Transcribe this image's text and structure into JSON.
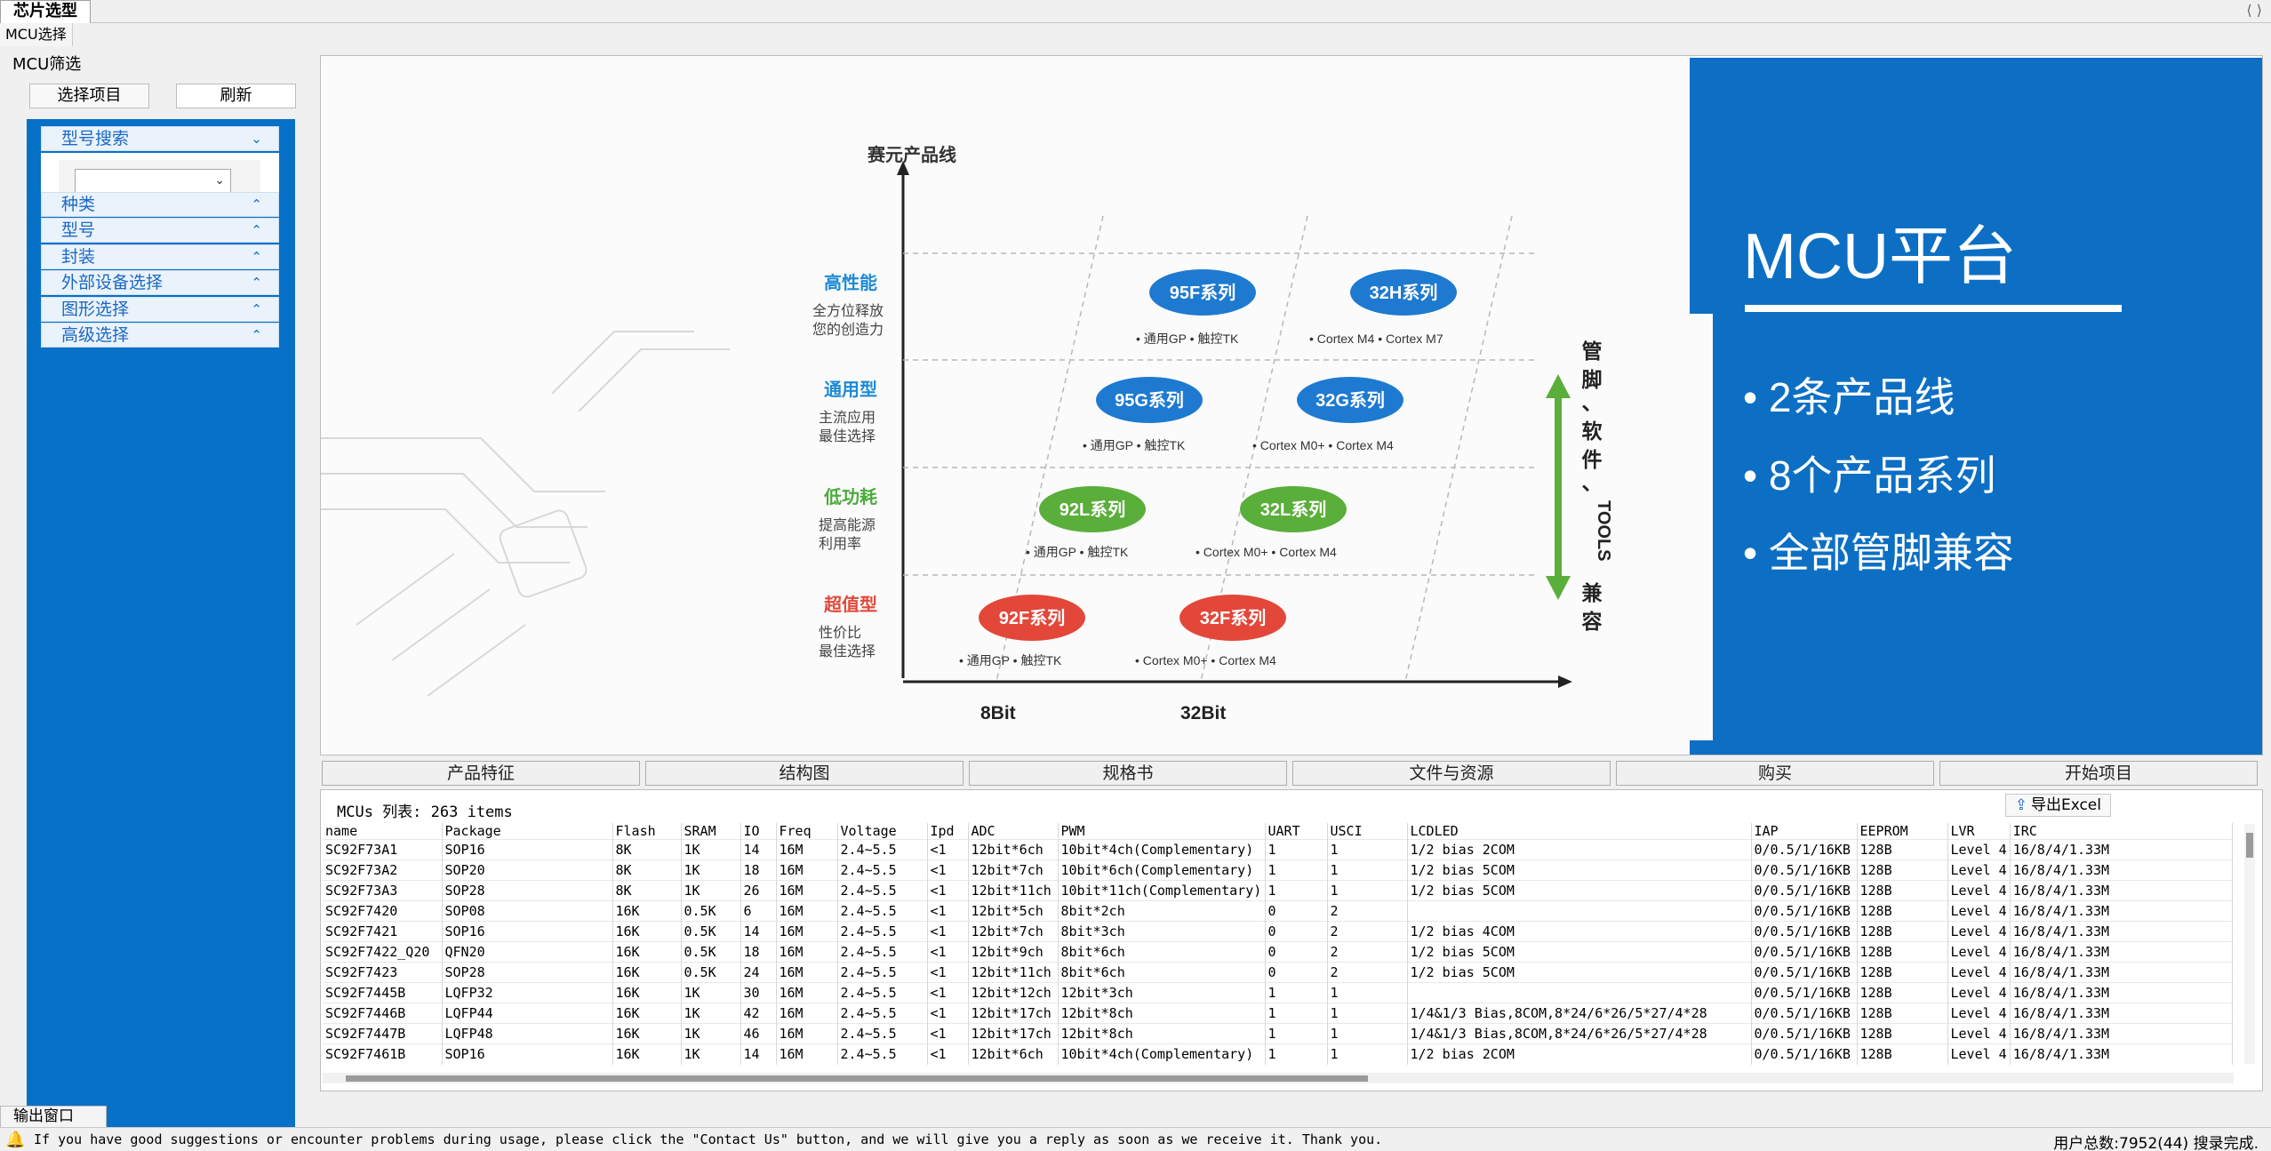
{
  "window": {
    "doc_tab": "芯片选型",
    "nav_glyphs": "⟨ ⟩",
    "subtab": "MCU选择"
  },
  "left": {
    "title": "MCU筛选",
    "select_btn": "选择项目",
    "refresh_btn": "刷新",
    "accordions": [
      "型号搜索",
      "种类",
      "型号",
      "封装",
      "外部设备选择",
      "图形选择",
      "高级选择"
    ],
    "combo_value": ""
  },
  "hero": {
    "y_axis_label": "赛元产品线",
    "x_labels": [
      "8Bit",
      "32Bit"
    ],
    "tiers": [
      {
        "name": "高性能",
        "desc1": "全方位释放",
        "desc2": "您的创造力",
        "color": "#1e8ad6"
      },
      {
        "name": "通用型",
        "desc1": "主流应用",
        "desc2": "最佳选择",
        "color": "#1e8ad6"
      },
      {
        "name": "低功耗",
        "desc1": "提高能源",
        "desc2": "利用率",
        "color": "#4bab3c"
      },
      {
        "name": "超值型",
        "desc1": "性价比",
        "desc2": "最佳选择",
        "color": "#e2483a"
      }
    ],
    "series": [
      {
        "label": "95F系列",
        "note": "• 通用GP • 触控TK",
        "color": "#1e7ad0"
      },
      {
        "label": "32H系列",
        "note": "• Cortex M4  • Cortex M7",
        "color": "#1e7ad0"
      },
      {
        "label": "95G系列",
        "note": "• 通用GP • 触控TK",
        "color": "#1e7ad0"
      },
      {
        "label": "32G系列",
        "note": "• Cortex M0+  • Cortex M4",
        "color": "#1e7ad0"
      },
      {
        "label": "92L系列",
        "note": "• 通用GP • 触控TK",
        "color": "#5aae3a"
      },
      {
        "label": "32L系列",
        "note": "• Cortex M0+  • Cortex M4",
        "color": "#5aae3a"
      },
      {
        "label": "92F系列",
        "note": "• 通用GP • 触控TK",
        "color": "#e2473a"
      },
      {
        "label": "32F系列",
        "note": "• Cortex M0+  • Cortex M4",
        "color": "#e2473a"
      }
    ],
    "compat_text": [
      "管",
      "脚",
      "、",
      "软",
      "件",
      "、",
      "TOOLS",
      "兼",
      "容"
    ],
    "panel_title": "MCU平台",
    "bullets": [
      "• 2条产品线",
      "• 8个产品系列",
      "• 全部管脚兼容"
    ],
    "brand_blue": "#0c6fc4"
  },
  "tabs": [
    "产品特征",
    "结构图",
    "规格书",
    "文件与资源",
    "购买",
    "开始项目"
  ],
  "list": {
    "header": "MCUs 列表:  263 items",
    "export_label": "导出Excel",
    "columns": [
      "name",
      "Package",
      "Flash",
      "SRAM",
      "IO",
      "Freq",
      "Voltage",
      "Ipd",
      "ADC",
      "PWM",
      "UART",
      "USCI",
      "LCDLED",
      "IAP",
      "EEPROM",
      "LVR",
      "IRC"
    ],
    "rows": [
      [
        "SC92F73A1",
        "SOP16",
        "8K",
        "1K",
        "14",
        "16M",
        "2.4~5.5",
        "<1",
        "12bit*6ch",
        "10bit*4ch(Complementary)",
        "1",
        "1",
        "1/2 bias 2COM",
        "0/0.5/1/16KB",
        "128B",
        "Level 4",
        "16/8/4/1.33M"
      ],
      [
        "SC92F73A2",
        "SOP20",
        "8K",
        "1K",
        "18",
        "16M",
        "2.4~5.5",
        "<1",
        "12bit*7ch",
        "10bit*6ch(Complementary)",
        "1",
        "1",
        "1/2 bias 5COM",
        "0/0.5/1/16KB",
        "128B",
        "Level 4",
        "16/8/4/1.33M"
      ],
      [
        "SC92F73A3",
        "SOP28",
        "8K",
        "1K",
        "26",
        "16M",
        "2.4~5.5",
        "<1",
        "12bit*11ch",
        "10bit*11ch(Complementary)",
        "1",
        "1",
        "1/2 bias 5COM",
        "0/0.5/1/16KB",
        "128B",
        "Level 4",
        "16/8/4/1.33M"
      ],
      [
        "SC92F7420",
        "SOP08",
        "16K",
        "0.5K",
        "6",
        "16M",
        "2.4~5.5",
        "<1",
        "12bit*5ch",
        "8bit*2ch",
        "0",
        "2",
        "",
        "0/0.5/1/16KB",
        "128B",
        "Level 4",
        "16/8/4/1.33M"
      ],
      [
        "SC92F7421",
        "SOP16",
        "16K",
        "0.5K",
        "14",
        "16M",
        "2.4~5.5",
        "<1",
        "12bit*7ch",
        "8bit*3ch",
        "0",
        "2",
        "1/2 bias 4COM",
        "0/0.5/1/16KB",
        "128B",
        "Level 4",
        "16/8/4/1.33M"
      ],
      [
        "SC92F7422_Q20",
        "QFN20",
        "16K",
        "0.5K",
        "18",
        "16M",
        "2.4~5.5",
        "<1",
        "12bit*9ch",
        "8bit*6ch",
        "0",
        "2",
        "1/2 bias 5COM",
        "0/0.5/1/16KB",
        "128B",
        "Level 4",
        "16/8/4/1.33M"
      ],
      [
        "SC92F7423",
        "SOP28",
        "16K",
        "0.5K",
        "24",
        "16M",
        "2.4~5.5",
        "<1",
        "12bit*11ch",
        "8bit*6ch",
        "0",
        "2",
        "1/2 bias 5COM",
        "0/0.5/1/16KB",
        "128B",
        "Level 4",
        "16/8/4/1.33M"
      ],
      [
        "SC92F7445B",
        "LQFP32",
        "16K",
        "1K",
        "30",
        "16M",
        "2.4~5.5",
        "<1",
        "12bit*12ch",
        "12bit*3ch",
        "1",
        "1",
        "",
        "0/0.5/1/16KB",
        "128B",
        "Level 4",
        "16/8/4/1.33M"
      ],
      [
        "SC92F7446B",
        "LQFP44",
        "16K",
        "1K",
        "42",
        "16M",
        "2.4~5.5",
        "<1",
        "12bit*17ch",
        "12bit*8ch",
        "1",
        "1",
        "1/4&1/3 Bias,8COM,8*24/6*26/5*27/4*28",
        "0/0.5/1/16KB",
        "128B",
        "Level 4",
        "16/8/4/1.33M"
      ],
      [
        "SC92F7447B",
        "LQFP48",
        "16K",
        "1K",
        "46",
        "16M",
        "2.4~5.5",
        "<1",
        "12bit*17ch",
        "12bit*8ch",
        "1",
        "1",
        "1/4&1/3 Bias,8COM,8*24/6*26/5*27/4*28",
        "0/0.5/1/16KB",
        "128B",
        "Level 4",
        "16/8/4/1.33M"
      ],
      [
        "SC92F7461B",
        "SOP16",
        "16K",
        "1K",
        "14",
        "16M",
        "2.4~5.5",
        "<1",
        "12bit*6ch",
        "10bit*4ch(Complementary)",
        "1",
        "1",
        "1/2 bias 2COM",
        "0/0.5/1/16KB",
        "128B",
        "Level 4",
        "16/8/4/1.33M"
      ]
    ]
  },
  "output_tab": "输出窗口",
  "status": {
    "message": "If you have good suggestions or encounter problems during usage, please click the \"Contact Us\" button, and we will give you a reply as soon as we receive it. Thank you.",
    "right": "用户总数:7952(44)  搜录完成."
  }
}
